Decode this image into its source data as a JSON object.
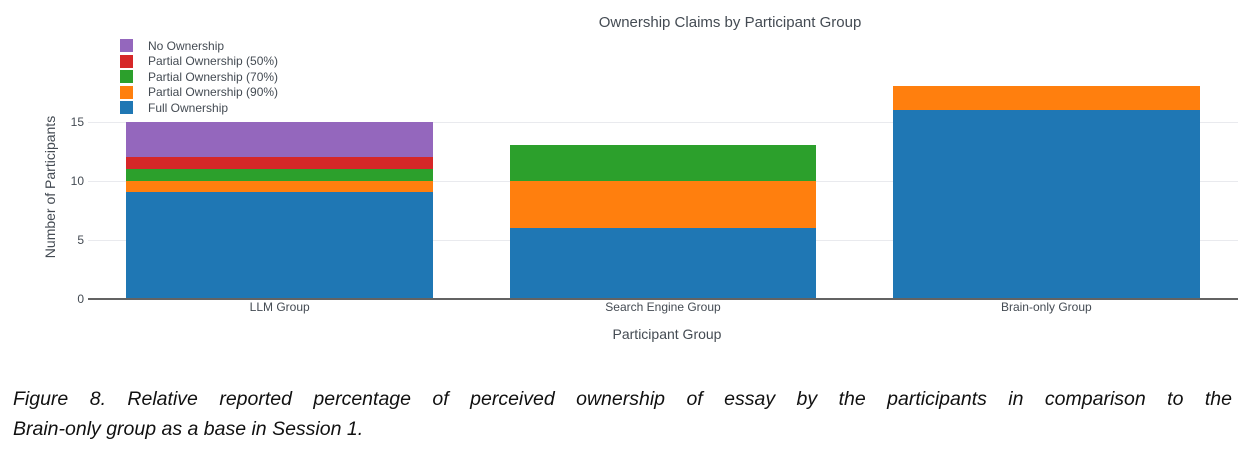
{
  "chart_data": {
    "type": "bar",
    "stacked": true,
    "title": "Ownership Claims by Participant Group",
    "xlabel": "Participant Group",
    "ylabel": "Number of Participants",
    "categories": [
      "LLM Group",
      "Search Engine Group",
      "Brain-only Group"
    ],
    "series": [
      {
        "name": "Full Ownership",
        "color": "#1f77b4",
        "values": [
          9,
          6,
          16
        ]
      },
      {
        "name": "Partial Ownership (90%)",
        "color": "#ff7f0e",
        "values": [
          1,
          4,
          2
        ]
      },
      {
        "name": "Partial Ownership (70%)",
        "color": "#2ca02c",
        "values": [
          1,
          3,
          0
        ]
      },
      {
        "name": "Partial Ownership (50%)",
        "color": "#d62728",
        "values": [
          1,
          0,
          0
        ]
      },
      {
        "name": "No Ownership",
        "color": "#9467bd",
        "values": [
          3,
          0,
          0
        ]
      }
    ],
    "totals": [
      15,
      13,
      18
    ],
    "yticks": [
      0,
      5,
      10,
      15
    ],
    "ylim": [
      0,
      18.95
    ],
    "grid": true,
    "grid_color": "#e9eaee",
    "axis_line_color": "#636363",
    "text_color": "#444b53",
    "legend_position": "top-left",
    "legend_order_top_to_bottom": [
      "No Ownership",
      "Partial Ownership (50%)",
      "Partial Ownership (70%)",
      "Partial Ownership (90%)",
      "Full Ownership"
    ],
    "bar_width_fraction": 0.8
  },
  "caption": {
    "lines": [
      "Figure 8. Relative reported percentage of perceived ownership of essay by the participants in comparison to the",
      "Brain-only group as a base in Session 1."
    ],
    "full": "Figure 8. Relative reported percentage of perceived ownership of essay by the participants in comparison to the Brain-only group as a base in Session 1."
  }
}
